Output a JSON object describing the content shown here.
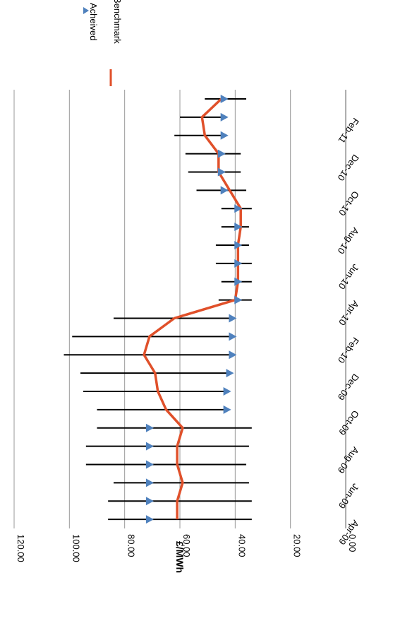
{
  "chart_data": {
    "type": "line",
    "orientation": "rotated-90-clockwise",
    "ylabel": "£/MWh",
    "ylim": [
      0,
      120
    ],
    "y_ticks": [
      "0.00",
      "20.00",
      "40.00",
      "60.00",
      "80.00",
      "100.00",
      "120.00"
    ],
    "grid": true,
    "legend_position": "top-right",
    "categories": [
      "Apr-09",
      "May-09",
      "Jun-09",
      "Jul-09",
      "Aug-09",
      "Sep-09",
      "Oct-09",
      "Nov-09",
      "Dec-09",
      "Jan-10",
      "Feb-10",
      "Mar-10",
      "Apr-10",
      "May-10",
      "Jun-10",
      "Jul-10",
      "Aug-10",
      "Sep-10",
      "Oct-10",
      "Nov-10",
      "Dec-10",
      "Jan-11",
      "Feb-11",
      "Mar-11"
    ],
    "x_tick_labels": [
      "Apr-09",
      "Jun-09",
      "Aug-09",
      "Oct-09",
      "Dec-09",
      "Feb-10",
      "Apr-10",
      "Jun-10",
      "Aug-10",
      "Oct-10",
      "Dec-10",
      "Feb-11"
    ],
    "series": [
      {
        "name": "Acheived",
        "marker": "triangle",
        "color": "#4f81bd",
        "values": [
          71,
          71,
          71,
          71,
          71,
          71,
          43,
          43,
          42,
          41,
          41,
          41,
          39,
          39,
          39,
          39,
          39,
          39,
          44,
          45,
          45,
          44,
          44,
          44
        ]
      },
      {
        "name": "Benchmark",
        "marker": "line",
        "color": "#e0502a",
        "values": [
          61,
          61,
          59,
          61,
          61,
          59,
          65,
          68,
          69,
          73,
          71,
          62,
          40,
          39,
          39,
          39,
          38,
          38,
          42,
          46,
          46,
          51,
          52,
          45
        ]
      }
    ],
    "range_bars": {
      "color": "#000000",
      "low": [
        34,
        34,
        35,
        36,
        35,
        34,
        null,
        null,
        null,
        null,
        null,
        null,
        34,
        34,
        34,
        35,
        35,
        34,
        36,
        38,
        38,
        null,
        null,
        36
      ],
      "high": [
        86,
        86,
        84,
        94,
        94,
        90,
        90,
        95,
        96,
        102,
        99,
        84,
        46,
        45,
        47,
        47,
        45,
        45,
        54,
        57,
        58,
        62,
        60,
        51
      ]
    }
  }
}
